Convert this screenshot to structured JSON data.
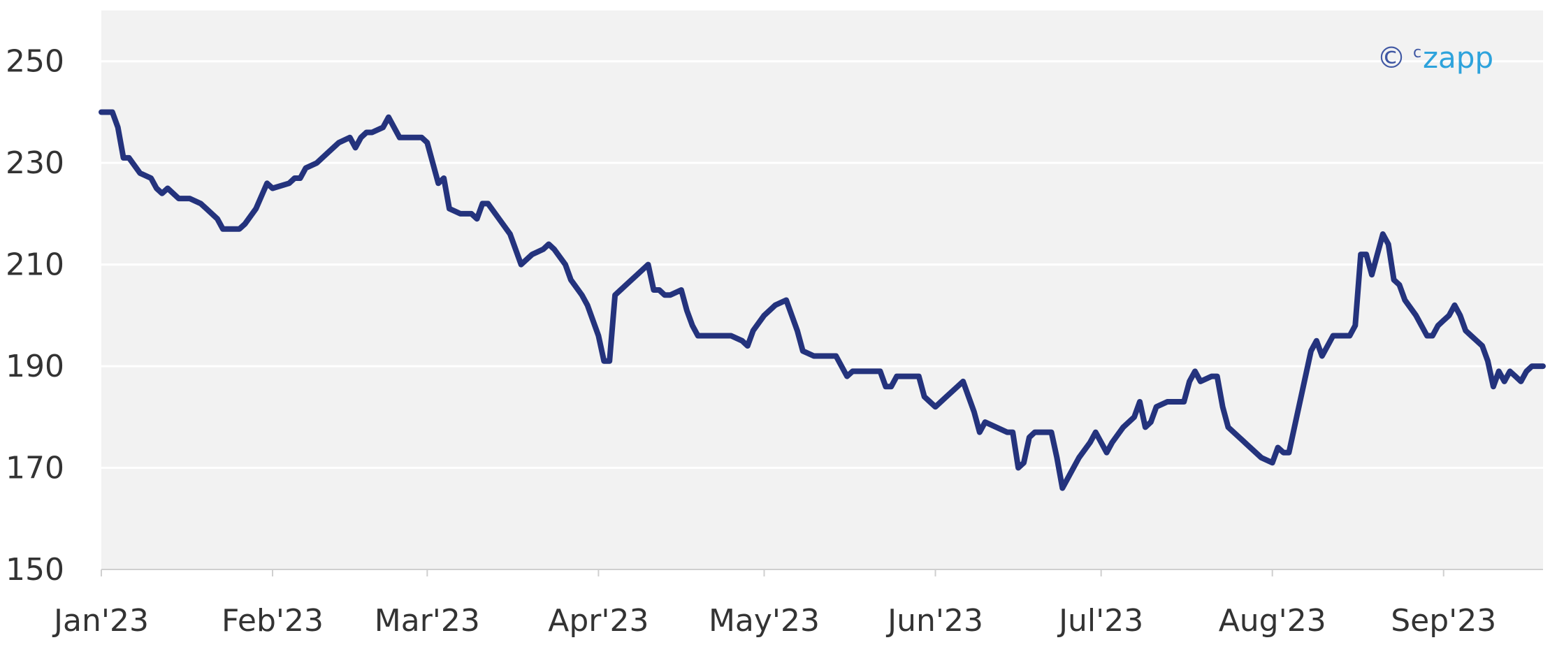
{
  "colors": {
    "plot_background": "#f2f2f2",
    "gridline": "#ffffff",
    "series_line": "#24337d",
    "axis": "#cfcfcf",
    "brand_symbol": "#3f57a3",
    "brand_text": "#2ea3dc"
  },
  "watermark": {
    "symbol": "©",
    "superscript": "c",
    "text": "zapp"
  },
  "chart_data": {
    "type": "line",
    "title": "",
    "xlabel": "",
    "ylabel": "",
    "ylim": [
      150,
      260
    ],
    "xlim": [
      "2023-01-01",
      "2023-09-19"
    ],
    "grid": true,
    "legend": "none",
    "y_ticks": [
      150,
      170,
      190,
      210,
      230,
      250
    ],
    "x_ticks": [
      {
        "date": "2023-01-01",
        "label": "Jan'23"
      },
      {
        "date": "2023-02-01",
        "label": "Feb'23"
      },
      {
        "date": "2023-03-01",
        "label": "Mar'23"
      },
      {
        "date": "2023-04-01",
        "label": "Apr'23"
      },
      {
        "date": "2023-05-01",
        "label": "May'23"
      },
      {
        "date": "2023-06-01",
        "label": "Jun'23"
      },
      {
        "date": "2023-07-01",
        "label": "Jul'23"
      },
      {
        "date": "2023-08-01",
        "label": "Aug'23"
      },
      {
        "date": "2023-09-01",
        "label": "Sep'23"
      }
    ],
    "series": [
      {
        "points": [
          [
            "2023-01-01",
            240
          ],
          [
            "2023-01-03",
            240
          ],
          [
            "2023-01-04",
            237
          ],
          [
            "2023-01-05",
            231
          ],
          [
            "2023-01-06",
            231
          ],
          [
            "2023-01-08",
            228
          ],
          [
            "2023-01-10",
            227
          ],
          [
            "2023-01-11",
            225
          ],
          [
            "2023-01-12",
            224
          ],
          [
            "2023-01-13",
            225
          ],
          [
            "2023-01-15",
            223
          ],
          [
            "2023-01-17",
            223
          ],
          [
            "2023-01-19",
            222
          ],
          [
            "2023-01-20",
            221
          ],
          [
            "2023-01-22",
            219
          ],
          [
            "2023-01-23",
            217
          ],
          [
            "2023-01-24",
            217
          ],
          [
            "2023-01-26",
            217
          ],
          [
            "2023-01-27",
            218
          ],
          [
            "2023-01-29",
            221
          ],
          [
            "2023-01-31",
            226
          ],
          [
            "2023-02-01",
            225
          ],
          [
            "2023-02-04",
            226
          ],
          [
            "2023-02-05",
            227
          ],
          [
            "2023-02-06",
            227
          ],
          [
            "2023-02-07",
            229
          ],
          [
            "2023-02-09",
            230
          ],
          [
            "2023-02-11",
            232
          ],
          [
            "2023-02-13",
            234
          ],
          [
            "2023-02-15",
            235
          ],
          [
            "2023-02-16",
            233
          ],
          [
            "2023-02-17",
            235
          ],
          [
            "2023-02-18",
            236
          ],
          [
            "2023-02-19",
            236
          ],
          [
            "2023-02-21",
            237
          ],
          [
            "2023-02-22",
            239
          ],
          [
            "2023-02-23",
            237
          ],
          [
            "2023-02-24",
            235
          ],
          [
            "2023-02-26",
            235
          ],
          [
            "2023-02-28",
            235
          ],
          [
            "2023-03-01",
            234
          ],
          [
            "2023-03-03",
            226
          ],
          [
            "2023-03-04",
            227
          ],
          [
            "2023-03-05",
            221
          ],
          [
            "2023-03-07",
            220
          ],
          [
            "2023-03-09",
            220
          ],
          [
            "2023-03-10",
            219
          ],
          [
            "2023-03-11",
            222
          ],
          [
            "2023-03-12",
            222
          ],
          [
            "2023-03-14",
            219
          ],
          [
            "2023-03-16",
            216
          ],
          [
            "2023-03-18",
            210
          ],
          [
            "2023-03-20",
            212
          ],
          [
            "2023-03-22",
            213
          ],
          [
            "2023-03-23",
            214
          ],
          [
            "2023-03-24",
            213
          ],
          [
            "2023-03-26",
            210
          ],
          [
            "2023-03-27",
            207
          ],
          [
            "2023-03-29",
            204
          ],
          [
            "2023-03-30",
            202
          ],
          [
            "2023-03-31",
            199
          ],
          [
            "2023-04-01",
            196
          ],
          [
            "2023-04-02",
            191
          ],
          [
            "2023-04-03",
            191
          ],
          [
            "2023-04-04",
            204
          ],
          [
            "2023-04-05",
            205
          ],
          [
            "2023-04-06",
            206
          ],
          [
            "2023-04-08",
            208
          ],
          [
            "2023-04-10",
            210
          ],
          [
            "2023-04-11",
            205
          ],
          [
            "2023-04-12",
            205
          ],
          [
            "2023-04-13",
            204
          ],
          [
            "2023-04-14",
            204
          ],
          [
            "2023-04-16",
            205
          ],
          [
            "2023-04-17",
            201
          ],
          [
            "2023-04-18",
            198
          ],
          [
            "2023-04-19",
            196
          ],
          [
            "2023-04-21",
            196
          ],
          [
            "2023-04-23",
            196
          ],
          [
            "2023-04-25",
            196
          ],
          [
            "2023-04-27",
            195
          ],
          [
            "2023-04-28",
            194
          ],
          [
            "2023-04-29",
            197
          ],
          [
            "2023-05-01",
            200
          ],
          [
            "2023-05-03",
            202
          ],
          [
            "2023-05-05",
            203
          ],
          [
            "2023-05-06",
            200
          ],
          [
            "2023-05-07",
            197
          ],
          [
            "2023-05-08",
            193
          ],
          [
            "2023-05-10",
            192
          ],
          [
            "2023-05-12",
            192
          ],
          [
            "2023-05-14",
            192
          ],
          [
            "2023-05-16",
            188
          ],
          [
            "2023-05-17",
            189
          ],
          [
            "2023-05-19",
            189
          ],
          [
            "2023-05-21",
            189
          ],
          [
            "2023-05-22",
            189
          ],
          [
            "2023-05-23",
            186
          ],
          [
            "2023-05-24",
            186
          ],
          [
            "2023-05-25",
            188
          ],
          [
            "2023-05-27",
            188
          ],
          [
            "2023-05-29",
            188
          ],
          [
            "2023-05-30",
            184
          ],
          [
            "2023-05-31",
            183
          ],
          [
            "2023-06-01",
            182
          ],
          [
            "2023-06-03",
            184
          ],
          [
            "2023-06-05",
            186
          ],
          [
            "2023-06-06",
            187
          ],
          [
            "2023-06-07",
            184
          ],
          [
            "2023-06-08",
            181
          ],
          [
            "2023-06-09",
            177
          ],
          [
            "2023-06-10",
            179
          ],
          [
            "2023-06-12",
            178
          ],
          [
            "2023-06-14",
            177
          ],
          [
            "2023-06-15",
            177
          ],
          [
            "2023-06-16",
            170
          ],
          [
            "2023-06-17",
            171
          ],
          [
            "2023-06-18",
            176
          ],
          [
            "2023-06-19",
            177
          ],
          [
            "2023-06-21",
            177
          ],
          [
            "2023-06-22",
            177
          ],
          [
            "2023-06-23",
            172
          ],
          [
            "2023-06-24",
            166
          ],
          [
            "2023-06-25",
            168
          ],
          [
            "2023-06-27",
            172
          ],
          [
            "2023-06-29",
            175
          ],
          [
            "2023-06-30",
            177
          ],
          [
            "2023-07-02",
            173
          ],
          [
            "2023-07-03",
            175
          ],
          [
            "2023-07-05",
            178
          ],
          [
            "2023-07-07",
            180
          ],
          [
            "2023-07-08",
            183
          ],
          [
            "2023-07-09",
            178
          ],
          [
            "2023-07-10",
            179
          ],
          [
            "2023-07-11",
            182
          ],
          [
            "2023-07-13",
            183
          ],
          [
            "2023-07-15",
            183
          ],
          [
            "2023-07-16",
            183
          ],
          [
            "2023-07-17",
            187
          ],
          [
            "2023-07-18",
            189
          ],
          [
            "2023-07-19",
            187
          ],
          [
            "2023-07-21",
            188
          ],
          [
            "2023-07-22",
            188
          ],
          [
            "2023-07-23",
            182
          ],
          [
            "2023-07-24",
            178
          ],
          [
            "2023-07-26",
            176
          ],
          [
            "2023-07-28",
            174
          ],
          [
            "2023-07-30",
            172
          ],
          [
            "2023-08-01",
            171
          ],
          [
            "2023-08-02",
            174
          ],
          [
            "2023-08-03",
            173
          ],
          [
            "2023-08-04",
            173
          ],
          [
            "2023-08-06",
            183
          ],
          [
            "2023-08-08",
            193
          ],
          [
            "2023-08-09",
            195
          ],
          [
            "2023-08-10",
            192
          ],
          [
            "2023-08-12",
            196
          ],
          [
            "2023-08-14",
            196
          ],
          [
            "2023-08-15",
            196
          ],
          [
            "2023-08-16",
            198
          ],
          [
            "2023-08-17",
            212
          ],
          [
            "2023-08-18",
            212
          ],
          [
            "2023-08-19",
            208
          ],
          [
            "2023-08-20",
            212
          ],
          [
            "2023-08-21",
            216
          ],
          [
            "2023-08-22",
            214
          ],
          [
            "2023-08-23",
            207
          ],
          [
            "2023-08-24",
            206
          ],
          [
            "2023-08-25",
            203
          ],
          [
            "2023-08-27",
            200
          ],
          [
            "2023-08-28",
            198
          ],
          [
            "2023-08-29",
            196
          ],
          [
            "2023-08-30",
            196
          ],
          [
            "2023-08-31",
            198
          ],
          [
            "2023-09-01",
            199
          ],
          [
            "2023-09-02",
            200
          ],
          [
            "2023-09-03",
            202
          ],
          [
            "2023-09-04",
            200
          ],
          [
            "2023-09-05",
            197
          ],
          [
            "2023-09-06",
            196
          ],
          [
            "2023-09-07",
            195
          ],
          [
            "2023-09-08",
            194
          ],
          [
            "2023-09-09",
            191
          ],
          [
            "2023-09-10",
            186
          ],
          [
            "2023-09-11",
            189
          ],
          [
            "2023-09-12",
            187
          ],
          [
            "2023-09-13",
            189
          ],
          [
            "2023-09-14",
            188
          ],
          [
            "2023-09-15",
            187
          ],
          [
            "2023-09-16",
            189
          ],
          [
            "2023-09-17",
            190
          ],
          [
            "2023-09-18",
            190
          ],
          [
            "2023-09-19",
            190
          ]
        ]
      }
    ]
  }
}
